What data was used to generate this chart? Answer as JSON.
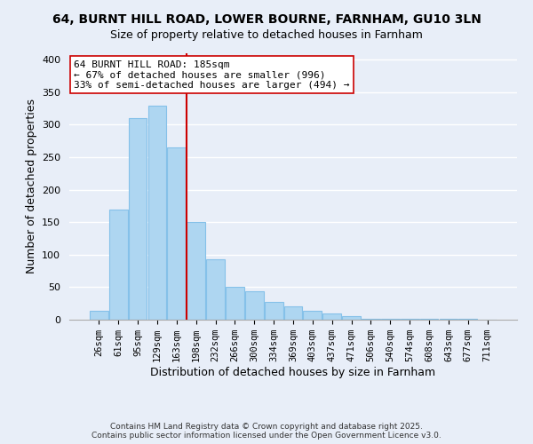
{
  "title": "64, BURNT HILL ROAD, LOWER BOURNE, FARNHAM, GU10 3LN",
  "subtitle": "Size of property relative to detached houses in Farnham",
  "xlabel": "Distribution of detached houses by size in Farnham",
  "ylabel": "Number of detached properties",
  "categories": [
    "26sqm",
    "61sqm",
    "95sqm",
    "129sqm",
    "163sqm",
    "198sqm",
    "232sqm",
    "266sqm",
    "300sqm",
    "334sqm",
    "369sqm",
    "403sqm",
    "437sqm",
    "471sqm",
    "506sqm",
    "540sqm",
    "574sqm",
    "608sqm",
    "643sqm",
    "677sqm",
    "711sqm"
  ],
  "bar_heights": [
    13,
    170,
    310,
    330,
    265,
    150,
    93,
    50,
    44,
    28,
    21,
    14,
    10,
    5,
    2,
    1,
    1,
    1,
    1,
    1,
    0
  ],
  "bar_color": "#aed6f1",
  "bar_edge_color": "#85c1e9",
  "vline_x_index": 5,
  "vline_color": "#cc0000",
  "ylim": [
    0,
    410
  ],
  "annotation_title": "64 BURNT HILL ROAD: 185sqm",
  "annotation_line1": "← 67% of detached houses are smaller (996)",
  "annotation_line2": "33% of semi-detached houses are larger (494) →",
  "footer_line1": "Contains HM Land Registry data © Crown copyright and database right 2025.",
  "footer_line2": "Contains public sector information licensed under the Open Government Licence v3.0.",
  "background_color": "#e8eef8",
  "title_fontsize": 10,
  "subtitle_fontsize": 9,
  "grid_color": "#ffffff",
  "yticks": [
    0,
    50,
    100,
    150,
    200,
    250,
    300,
    350,
    400
  ]
}
